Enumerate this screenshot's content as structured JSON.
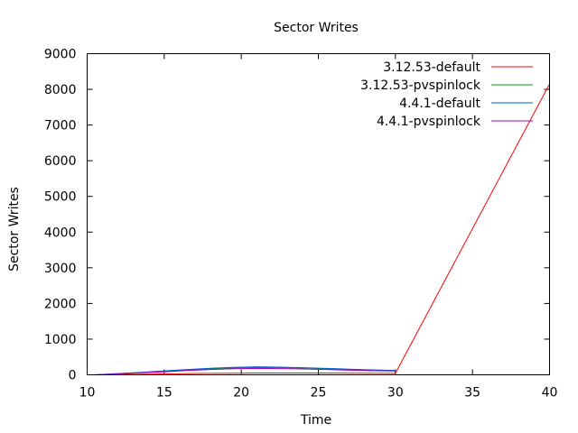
{
  "chart_data": {
    "type": "line",
    "title": "Sector Writes",
    "xlabel": "Time",
    "ylabel": "Sector Writes",
    "xlim": [
      10,
      40
    ],
    "ylim": [
      0,
      9000
    ],
    "x_ticks": [
      10,
      15,
      20,
      25,
      30,
      35,
      40
    ],
    "y_ticks": [
      0,
      1000,
      2000,
      3000,
      4000,
      5000,
      6000,
      7000,
      8000,
      9000
    ],
    "grid": false,
    "legend_position": "top-right",
    "series": [
      {
        "name": "3.12.53-default",
        "color": "#ff0000",
        "points": [
          [
            10.5,
            0
          ],
          [
            12,
            10
          ],
          [
            15,
            25
          ],
          [
            18,
            40
          ],
          [
            21,
            50
          ],
          [
            24,
            50
          ],
          [
            27,
            45
          ],
          [
            30,
            40
          ],
          [
            40,
            8150
          ]
        ]
      },
      {
        "name": "3.12.53-pvspinlock",
        "color": "#00a000",
        "points": [
          [
            10.5,
            0
          ],
          [
            12,
            30
          ],
          [
            13.5,
            60
          ],
          [
            15,
            90
          ],
          [
            16.5,
            130
          ],
          [
            18,
            170
          ],
          [
            19.5,
            190
          ],
          [
            21,
            205
          ],
          [
            22.5,
            200
          ],
          [
            24,
            190
          ],
          [
            25.5,
            170
          ],
          [
            27,
            150
          ],
          [
            28.5,
            130
          ],
          [
            30,
            120
          ]
        ]
      },
      {
        "name": "4.4.1-default",
        "color": "#0060d0",
        "points": [
          [
            10.5,
            0
          ],
          [
            12,
            35
          ],
          [
            13.5,
            70
          ],
          [
            15,
            110
          ],
          [
            16.5,
            150
          ],
          [
            18,
            185
          ],
          [
            19.5,
            210
          ],
          [
            21,
            225
          ],
          [
            22.5,
            215
          ],
          [
            24,
            200
          ],
          [
            25.5,
            180
          ],
          [
            27,
            160
          ],
          [
            28.5,
            140
          ],
          [
            30,
            125
          ]
        ]
      },
      {
        "name": "4.4.1-pvspinlock",
        "color": "#a000d0",
        "points": [
          [
            10.5,
            0
          ],
          [
            12,
            25
          ],
          [
            13.5,
            55
          ],
          [
            15,
            85
          ],
          [
            16.5,
            120
          ],
          [
            18,
            150
          ],
          [
            19.5,
            170
          ],
          [
            21,
            180
          ],
          [
            22.5,
            175
          ],
          [
            24,
            165
          ],
          [
            25.5,
            150
          ],
          [
            27,
            130
          ],
          [
            28.5,
            115
          ],
          [
            30,
            105
          ]
        ]
      }
    ]
  }
}
